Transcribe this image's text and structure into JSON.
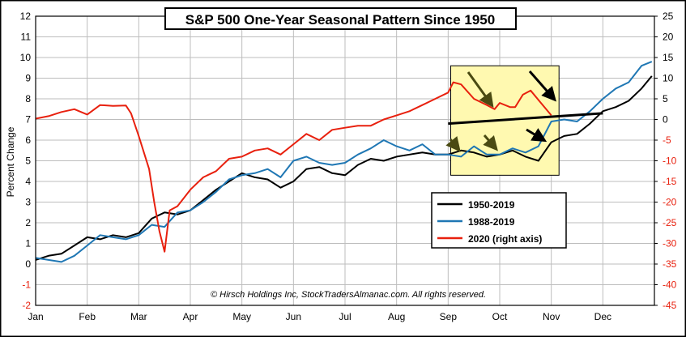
{
  "chart_data": {
    "type": "line",
    "title": "S&P 500 One-Year Seasonal Pattern Since 1950",
    "ylabel": "Percent Change",
    "xlabel": "",
    "copyright": "© Hirsch Holdings Inc, StockTradersAlmanac.com. All rights reserved.",
    "months": [
      "Jan",
      "Feb",
      "Mar",
      "Apr",
      "May",
      "Jun",
      "Jul",
      "Aug",
      "Sep",
      "Oct",
      "Nov",
      "Dec"
    ],
    "y_left": {
      "min": -2,
      "max": 12,
      "ticks": [
        -2,
        -1,
        0,
        1,
        2,
        3,
        4,
        5,
        6,
        7,
        8,
        9,
        10,
        11,
        12
      ]
    },
    "y_right": {
      "min": -45,
      "max": 25,
      "ticks": [
        -45,
        -40,
        -35,
        -30,
        -25,
        -20,
        -15,
        -10,
        -5,
        0,
        5,
        10,
        15,
        20,
        25
      ]
    },
    "grid": true,
    "legend_position": "lower-right",
    "x_range": [
      0,
      12
    ],
    "series": [
      {
        "name": "1950-2019",
        "axis": "left",
        "color": "#000000",
        "x": [
          0,
          0.25,
          0.5,
          0.75,
          1,
          1.25,
          1.5,
          1.75,
          2,
          2.25,
          2.5,
          2.75,
          3,
          3.25,
          3.5,
          3.75,
          4,
          4.25,
          4.5,
          4.75,
          5,
          5.25,
          5.5,
          5.75,
          6,
          6.25,
          6.5,
          6.75,
          7,
          7.25,
          7.5,
          7.75,
          8,
          8.25,
          8.5,
          8.75,
          9,
          9.25,
          9.5,
          9.75,
          10,
          10.25,
          10.5,
          10.75,
          11,
          11.25,
          11.5,
          11.75,
          11.95
        ],
        "values": [
          0.2,
          0.4,
          0.5,
          0.9,
          1.3,
          1.2,
          1.4,
          1.3,
          1.5,
          2.2,
          2.5,
          2.4,
          2.6,
          3.1,
          3.6,
          4.0,
          4.4,
          4.2,
          4.1,
          3.7,
          4.0,
          4.6,
          4.7,
          4.4,
          4.3,
          4.8,
          5.1,
          5.0,
          5.2,
          5.3,
          5.4,
          5.3,
          5.3,
          5.5,
          5.4,
          5.2,
          5.3,
          5.5,
          5.2,
          5.0,
          5.9,
          6.2,
          6.3,
          6.8,
          7.4,
          7.6,
          7.9,
          8.5,
          9.1
        ]
      },
      {
        "name": "1988-2019",
        "axis": "left",
        "color": "#1f77b4",
        "x": [
          0,
          0.25,
          0.5,
          0.75,
          1,
          1.25,
          1.5,
          1.75,
          2,
          2.25,
          2.5,
          2.75,
          3,
          3.25,
          3.5,
          3.75,
          4,
          4.25,
          4.5,
          4.75,
          5,
          5.25,
          5.5,
          5.75,
          6,
          6.25,
          6.5,
          6.75,
          7,
          7.25,
          7.5,
          7.75,
          8,
          8.25,
          8.5,
          8.75,
          9,
          9.25,
          9.5,
          9.75,
          10,
          10.25,
          10.5,
          10.75,
          11,
          11.25,
          11.5,
          11.75,
          11.95
        ],
        "values": [
          0.3,
          0.2,
          0.1,
          0.4,
          0.9,
          1.4,
          1.3,
          1.2,
          1.4,
          1.9,
          1.8,
          2.5,
          2.6,
          3.0,
          3.5,
          4.1,
          4.3,
          4.4,
          4.6,
          4.2,
          5.0,
          5.2,
          4.9,
          4.8,
          4.9,
          5.3,
          5.6,
          6.0,
          5.7,
          5.5,
          5.8,
          5.3,
          5.3,
          5.2,
          5.7,
          5.3,
          5.3,
          5.6,
          5.4,
          5.7,
          6.9,
          7.0,
          6.9,
          7.4,
          8.0,
          8.5,
          8.8,
          9.6,
          9.8
        ]
      },
      {
        "name": "2020 (right axis)",
        "axis": "right",
        "color": "#e8200e",
        "x": [
          0,
          0.25,
          0.5,
          0.75,
          1,
          1.25,
          1.5,
          1.75,
          1.85,
          2,
          2.1,
          2.2,
          2.3,
          2.4,
          2.5,
          2.6,
          2.75,
          3,
          3.25,
          3.5,
          3.75,
          4,
          4.25,
          4.5,
          4.75,
          5,
          5.25,
          5.5,
          5.75,
          6,
          6.25,
          6.5,
          6.75,
          7,
          7.25,
          7.5,
          7.75,
          8,
          8.1,
          8.25,
          8.5,
          8.75,
          8.9,
          9,
          9.2,
          9.3,
          9.45,
          9.6,
          9.8,
          10.0
        ],
        "values": [
          0.2,
          0.8,
          1.8,
          2.5,
          1.2,
          3.5,
          3.3,
          3.4,
          1.5,
          -4.0,
          -8.0,
          -12.0,
          -20.0,
          -27.0,
          -32.0,
          -22.0,
          -21.0,
          -17.0,
          -14.0,
          -12.5,
          -9.5,
          -9.0,
          -7.5,
          -7.0,
          -8.5,
          -6.0,
          -3.5,
          -5.0,
          -2.5,
          -2.0,
          -1.5,
          -1.5,
          0.0,
          1.0,
          2.0,
          3.5,
          5.0,
          6.5,
          9.0,
          8.5,
          5.0,
          3.5,
          2.5,
          4.0,
          3.0,
          3.0,
          6.0,
          7.0,
          4.0,
          1.0
        ]
      }
    ],
    "trendline": {
      "axis": "right",
      "x": [
        8.0,
        11.0
      ],
      "values": [
        -1.0,
        1.5
      ]
    },
    "highlight": {
      "axis": "left",
      "x_range": [
        8.05,
        10.15
      ],
      "y_range": [
        4.3,
        9.6
      ],
      "fill": "#fff9b0"
    },
    "arrows_yellow_box_count": 5
  }
}
